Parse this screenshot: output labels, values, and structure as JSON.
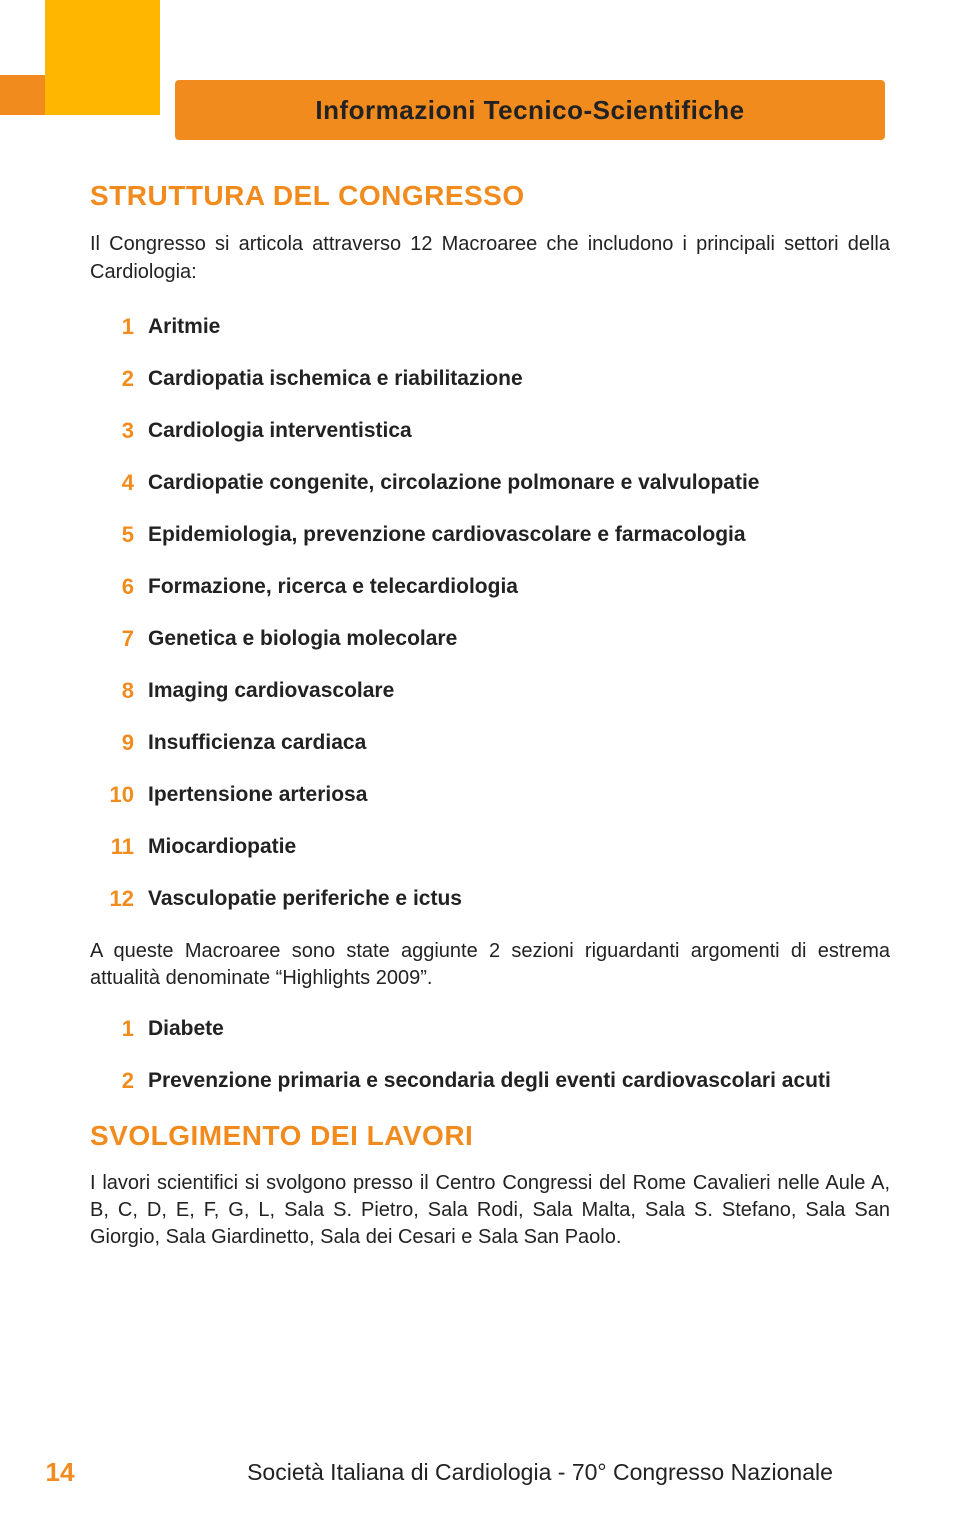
{
  "colors": {
    "orange": "#f28b1e",
    "yellow": "#ffb600",
    "text": "#222222",
    "background": "#ffffff"
  },
  "tab": {
    "label": "Informazioni Tecnico-Scientifiche"
  },
  "section1": {
    "title": "STRUTTURA DEL CONGRESSO",
    "intro": "Il Congresso si articola attraverso 12 Macroaree che includono i principali settori della Cardiologia:",
    "items": [
      {
        "n": "1",
        "label": "Aritmie"
      },
      {
        "n": "2",
        "label": "Cardiopatia ischemica e riabilitazione"
      },
      {
        "n": "3",
        "label": "Cardiologia interventistica"
      },
      {
        "n": "4",
        "label": "Cardiopatie congenite, circolazione polmonare e valvulopatie"
      },
      {
        "n": "5",
        "label": "Epidemiologia, prevenzione cardiovascolare e farmacologia"
      },
      {
        "n": "6",
        "label": "Formazione, ricerca e telecardiologia"
      },
      {
        "n": "7",
        "label": "Genetica e biologia molecolare"
      },
      {
        "n": "8",
        "label": "Imaging cardiovascolare"
      },
      {
        "n": "9",
        "label": "Insufficienza cardiaca"
      },
      {
        "n": "10",
        "label": "Ipertensione arteriosa"
      },
      {
        "n": "11",
        "label": "Miocardiopatie"
      },
      {
        "n": "12",
        "label": "Vasculopatie periferiche e ictus"
      }
    ],
    "after": "A queste Macroaree sono state aggiunte 2 sezioni riguardanti argomenti di estrema attualità denominate “Highlights 2009”.",
    "highlights": [
      {
        "n": "1",
        "label": "Diabete"
      },
      {
        "n": "2",
        "label": "Prevenzione primaria e secondaria degli eventi cardiovascolari acuti"
      }
    ]
  },
  "section2": {
    "title": "SVOLGIMENTO DEI LAVORI",
    "body": "I lavori scientifici si svolgono presso il Centro Congressi del Rome Cavalieri nelle Aule A, B, C, D, E, F, G, L, Sala S. Pietro, Sala Rodi, Sala Malta, Sala S. Stefano, Sala San Giorgio, Sala Giardinetto, Sala dei Cesari e Sala San Paolo."
  },
  "footer": {
    "page": "14",
    "text": "Società Italiana di Cardiologia - 70° Congresso Nazionale"
  }
}
